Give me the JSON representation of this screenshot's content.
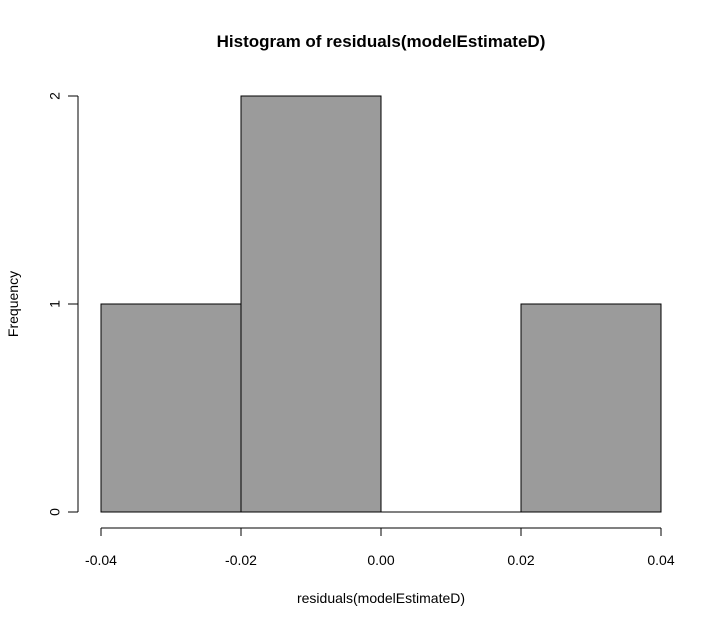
{
  "chart_data": {
    "type": "bar",
    "title": "Histogram of residuals(modelEstimateD)",
    "xlabel": "residuals(modelEstimateD)",
    "ylabel": "Frequency",
    "bins": [
      {
        "x0": -0.04,
        "x1": -0.02,
        "count": 1
      },
      {
        "x0": -0.02,
        "x1": 0.0,
        "count": 2
      },
      {
        "x0": 0.0,
        "x1": 0.02,
        "count": 0
      },
      {
        "x0": 0.02,
        "x1": 0.04,
        "count": 1
      }
    ],
    "xticks": [
      -0.04,
      -0.02,
      0.0,
      0.02,
      0.04
    ],
    "xtick_labels": [
      "-0.04",
      "-0.02",
      "0.00",
      "0.02",
      "0.04"
    ],
    "yticks": [
      0,
      1,
      2
    ],
    "ytick_labels": [
      "0",
      "1",
      "2"
    ],
    "xlim": [
      -0.04,
      0.04
    ],
    "ylim": [
      0,
      2
    ],
    "grid": false,
    "bar_color": "#9b9b9b",
    "edge_color": "#000000"
  }
}
